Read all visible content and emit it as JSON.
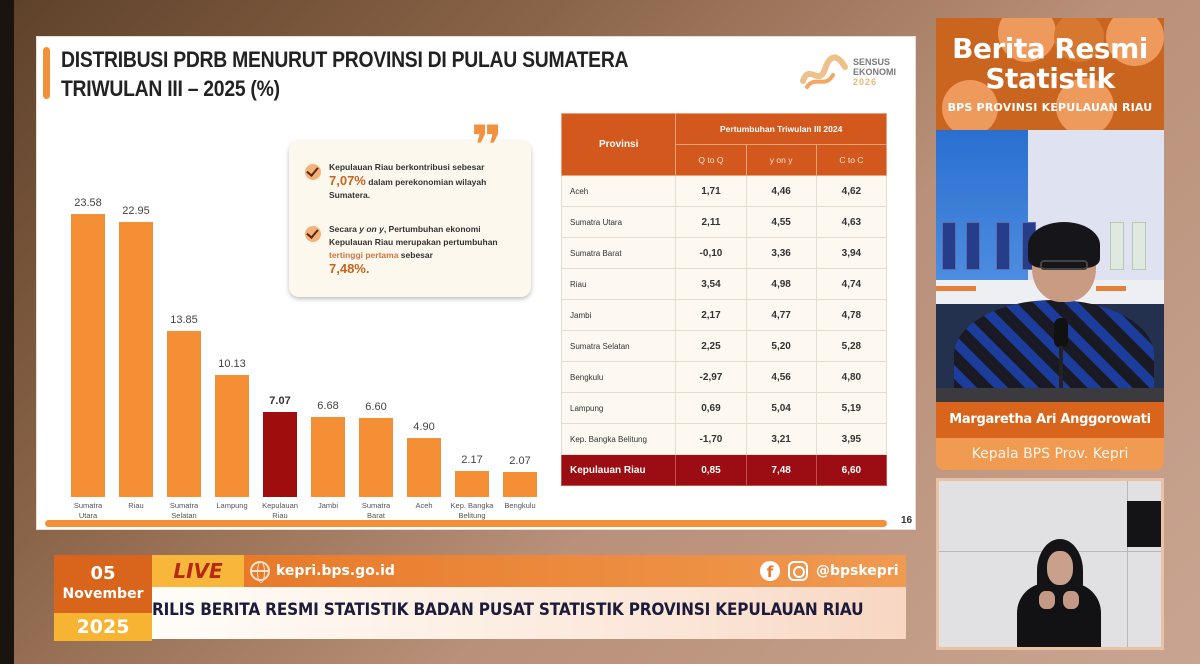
{
  "slide": {
    "title_line1": "DISTRIBUSI PDRB MENURUT PROVINSI DI PULAU SUMATERA",
    "title_line2": "TRIWULAN III – 2025 (%)",
    "logo": {
      "line1": "SENSUS",
      "line2": "EKONOMI",
      "line3": "2026"
    },
    "page_number": "16",
    "accent_color": "#f48f36",
    "highlight_color": "#a00d0d"
  },
  "chart_data": {
    "type": "bar",
    "title": "DISTRIBUSI PDRB MENURUT PROVINSI DI PULAU SUMATERA TRIWULAN III – 2025 (%)",
    "categories": [
      "Sumatra Utara",
      "Riau",
      "Sumatra Selatan",
      "Lampung",
      "Kepulauan Riau",
      "Jambi",
      "Sumatra Barat",
      "Aceh",
      "Kep. Bangka Belitung",
      "Bengkulu"
    ],
    "values": [
      23.58,
      22.95,
      13.85,
      10.13,
      7.07,
      6.68,
      6.6,
      4.9,
      2.17,
      2.07
    ],
    "value_labels": [
      "23.58",
      "22.95",
      "13.85",
      "10.13",
      "7.07",
      "6.68",
      "6.60",
      "4.90",
      "2.17",
      "2.07"
    ],
    "highlighted_category": "Kepulauan Riau",
    "xlabel": "",
    "ylabel": "%",
    "ylim": [
      0,
      25
    ],
    "grid": false,
    "legend": "none"
  },
  "x_labels": [
    [
      "Sumatra",
      "Utara"
    ],
    [
      "Riau",
      ""
    ],
    [
      "Sumatra",
      "Selatan"
    ],
    [
      "Lampung",
      ""
    ],
    [
      "Kepulauan",
      "Riau"
    ],
    [
      "Jambi",
      ""
    ],
    [
      "Sumatra",
      "Barat"
    ],
    [
      "Aceh",
      ""
    ],
    [
      "Kep. Bangka",
      "Belitung"
    ],
    [
      "Bengkulu",
      ""
    ]
  ],
  "callout": {
    "bullet1_pre": "Kepulauan Riau berkontribusi sebesar",
    "bullet1_pct": "7,07%",
    "bullet1_post": " dalam perekonomian wilayah Sumatera.",
    "bullet2_pre": "Secara ",
    "bullet2_em": "y on y",
    "bullet2_mid": ", Pertumbuhan ekonomi Kepulauan Riau merupakan pertumbuhan ",
    "bullet2_red": "tertinggi pertama",
    "bullet2_post": " sebesar",
    "bullet2_pct": "7,48%."
  },
  "table": {
    "header_provinsi": "Provinsi",
    "header_group": "Pertumbuhan Triwulan III 2024",
    "columns": [
      "Q to Q",
      "y on y",
      "C to C"
    ],
    "rows": [
      {
        "prov": "Aceh",
        "qtoq": "1,71",
        "yony": "4,46",
        "ctoc": "4,62"
      },
      {
        "prov": "Sumatra Utara",
        "qtoq": "2,11",
        "yony": "4,55",
        "ctoc": "4,63"
      },
      {
        "prov": "Sumatra Barat",
        "qtoq": "-0,10",
        "yony": "3,36",
        "ctoc": "3,94"
      },
      {
        "prov": "Riau",
        "qtoq": "3,54",
        "yony": "4,98",
        "ctoc": "4,74"
      },
      {
        "prov": "Jambi",
        "qtoq": "2,17",
        "yony": "4,77",
        "ctoc": "4,78"
      },
      {
        "prov": "Sumatra Selatan",
        "qtoq": "2,25",
        "yony": "5,20",
        "ctoc": "5,28"
      },
      {
        "prov": "Bengkulu",
        "qtoq": "-2,97",
        "yony": "4,56",
        "ctoc": "4,80"
      },
      {
        "prov": "Lampung",
        "qtoq": "0,69",
        "yony": "5,04",
        "ctoc": "5,19"
      },
      {
        "prov": "Kep. Bangka Belitung",
        "qtoq": "-1,70",
        "yony": "3,21",
        "ctoc": "3,95"
      },
      {
        "prov": "Kepulauan Riau",
        "qtoq": "0,85",
        "yony": "7,48",
        "ctoc": "6,60"
      }
    ]
  },
  "right_panel": {
    "brand_title_line1": "Berita Resmi",
    "brand_title_line2": "Statistik",
    "brand_subtitle": "BPS PROVINSI KEPULAUAN RIAU",
    "speaker_name": "Margaretha Ari Anggorowati",
    "speaker_role": "Kepala BPS Prov. Kepri"
  },
  "ticker": {
    "day": "05",
    "month": "November",
    "year": "2025",
    "live_label": "LIVE",
    "website": "kepri.bps.go.id",
    "social_handle": "@bpskepri",
    "headline": "RILIS BERITA RESMI STATISTIK BADAN PUSAT STATISTIK PROVINSI KEPULAUAN RIAU"
  }
}
